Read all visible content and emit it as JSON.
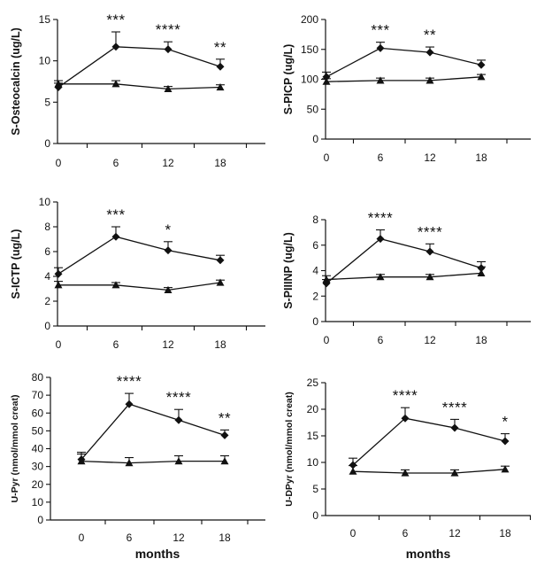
{
  "chart_data": [
    {
      "type": "line",
      "ylabel": "S-Osteocalcin (ug/L)",
      "xlabel": "",
      "categories": [
        "0",
        "6",
        "12",
        "18"
      ],
      "ylim": [
        0,
        15
      ],
      "yticks": [
        "0",
        "5",
        "10",
        "15"
      ],
      "grid": false,
      "series": [
        {
          "marker": "diamond",
          "values": [
            6.8,
            11.7,
            11.4,
            9.3
          ],
          "errors": [
            0.5,
            1.8,
            0.9,
            0.9
          ]
        },
        {
          "marker": "triangle",
          "values": [
            7.2,
            7.2,
            6.6,
            6.8
          ],
          "errors": [
            0.4,
            0.4,
            0.3,
            0.3
          ]
        }
      ],
      "annotations": [
        "",
        "***",
        "****",
        "**"
      ]
    },
    {
      "type": "line",
      "ylabel": "S-PICP (ug/L)",
      "xlabel": "",
      "categories": [
        "0",
        "6",
        "12",
        "18"
      ],
      "ylim": [
        0,
        200
      ],
      "yticks": [
        "0",
        "50",
        "100",
        "150",
        "200"
      ],
      "grid": false,
      "series": [
        {
          "marker": "diamond",
          "values": [
            104,
            152,
            145,
            124
          ],
          "errors": [
            8,
            10,
            9,
            8
          ]
        },
        {
          "marker": "triangle",
          "values": [
            96,
            98,
            98,
            104
          ],
          "errors": [
            5,
            4,
            4,
            4
          ]
        }
      ],
      "annotations": [
        "",
        "***",
        "**",
        ""
      ]
    },
    {
      "type": "line",
      "ylabel": "S-ICTP (ug/L)",
      "xlabel": "",
      "categories": [
        "0",
        "6",
        "12",
        "18"
      ],
      "ylim": [
        0,
        10
      ],
      "yticks": [
        "0",
        "2",
        "4",
        "6",
        "8",
        "10"
      ],
      "grid": false,
      "series": [
        {
          "marker": "diamond",
          "values": [
            4.2,
            7.2,
            6.1,
            5.3
          ],
          "errors": [
            0.5,
            0.8,
            0.7,
            0.4
          ]
        },
        {
          "marker": "triangle",
          "values": [
            3.3,
            3.3,
            2.9,
            3.5
          ],
          "errors": [
            0.3,
            0.2,
            0.2,
            0.2
          ]
        }
      ],
      "annotations": [
        "",
        "***",
        "*",
        ""
      ]
    },
    {
      "type": "line",
      "ylabel": "S-PIIINP (ug/L)",
      "xlabel": "",
      "categories": [
        "0",
        "6",
        "12",
        "18"
      ],
      "ylim": [
        0,
        8
      ],
      "yticks": [
        "0",
        "2",
        "4",
        "6",
        "8"
      ],
      "grid": false,
      "series": [
        {
          "marker": "diamond",
          "values": [
            3.0,
            6.5,
            5.5,
            4.2
          ],
          "errors": [
            0.3,
            0.7,
            0.6,
            0.5
          ]
        },
        {
          "marker": "triangle",
          "values": [
            3.3,
            3.5,
            3.5,
            3.8
          ],
          "errors": [
            0.3,
            0.2,
            0.2,
            0.5
          ]
        }
      ],
      "annotations": [
        "",
        "****",
        "****",
        ""
      ]
    },
    {
      "type": "line",
      "ylabel": "U-Pyr (nmol/mmol creat)",
      "xlabel": "months",
      "categories": [
        "0",
        "6",
        "12",
        "18"
      ],
      "ylim": [
        0,
        80
      ],
      "yticks": [
        "0",
        "10",
        "20",
        "30",
        "40",
        "50",
        "60",
        "70",
        "80"
      ],
      "grid": false,
      "series": [
        {
          "marker": "diamond",
          "values": [
            34,
            65,
            56,
            47.5
          ],
          "errors": [
            4,
            6,
            6,
            3
          ]
        },
        {
          "marker": "triangle",
          "values": [
            33,
            32,
            33,
            33
          ],
          "errors": [
            4,
            3,
            3,
            3
          ]
        }
      ],
      "annotations": [
        "",
        "****",
        "****",
        "**"
      ]
    },
    {
      "type": "line",
      "ylabel": "U-DPyr (nmol/mmol creat)",
      "xlabel": "months",
      "categories": [
        "0",
        "6",
        "12",
        "18"
      ],
      "ylim": [
        0,
        25
      ],
      "yticks": [
        "0",
        "5",
        "10",
        "15",
        "20",
        "25"
      ],
      "grid": false,
      "series": [
        {
          "marker": "diamond",
          "values": [
            9.5,
            18.3,
            16.5,
            14.0
          ],
          "errors": [
            1.3,
            2.0,
            1.6,
            1.4
          ]
        },
        {
          "marker": "triangle",
          "values": [
            8.3,
            8.0,
            8.0,
            8.7
          ],
          "errors": [
            1.1,
            0.6,
            0.6,
            0.6
          ]
        }
      ],
      "annotations": [
        "",
        "****",
        "****",
        "*"
      ]
    }
  ]
}
